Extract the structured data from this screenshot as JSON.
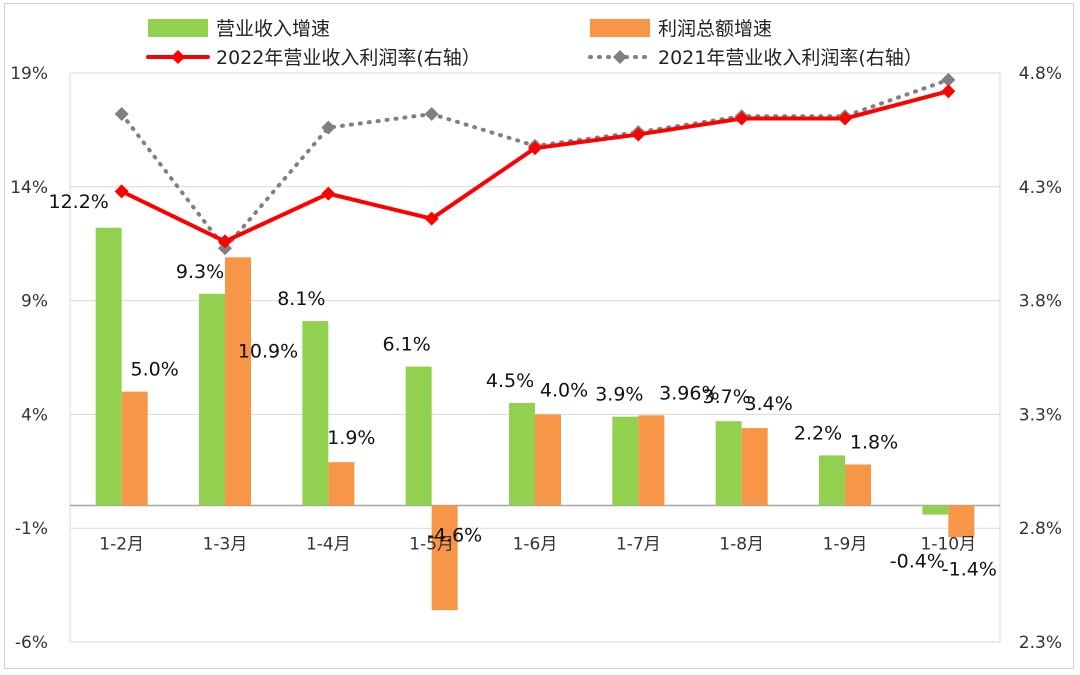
{
  "chart_data": {
    "type": "bar",
    "categories": [
      "1-2月",
      "1-3月",
      "1-4月",
      "1-5月",
      "1-6月",
      "1-7月",
      "1-8月",
      "1-9月",
      "1-10月"
    ],
    "series": [
      {
        "name": "营业收入增速",
        "type": "bar",
        "axis": "left",
        "color": "#92d050",
        "values": [
          12.2,
          9.3,
          8.1,
          6.1,
          4.5,
          3.9,
          3.7,
          2.2,
          -0.4
        ],
        "labels": [
          "12.2%",
          "9.3%",
          "8.1%",
          "6.1%",
          "4.5%",
          "3.9%",
          "3.7%",
          "2.2%",
          "-0.4%"
        ]
      },
      {
        "name": "利润总额增速",
        "type": "bar",
        "axis": "left",
        "color": "#f79646",
        "values": [
          5.0,
          10.9,
          1.9,
          -4.6,
          4.0,
          3.96,
          3.4,
          1.8,
          -1.4
        ],
        "labels": [
          "5.0%",
          "10.9%",
          "1.9%",
          "-4.6%",
          "4.0%",
          "3.96%",
          "3.4%",
          "1.8%",
          "-1.4%"
        ]
      },
      {
        "name": "2022年营业收入利润率(右轴）",
        "type": "line",
        "axis": "right",
        "color": "#ff0000",
        "values": [
          4.28,
          4.06,
          4.27,
          4.16,
          4.47,
          4.53,
          4.6,
          4.6,
          4.72
        ]
      },
      {
        "name": "2021年营业收入利润率(右轴）",
        "type": "line-dotted",
        "axis": "right",
        "color": "#808080",
        "values": [
          4.62,
          4.03,
          4.56,
          4.62,
          4.48,
          4.54,
          4.61,
          4.61,
          4.77
        ]
      }
    ],
    "left_axis": {
      "min": -6,
      "max": 19,
      "ticks": [
        19,
        14,
        9,
        4,
        -1,
        -6
      ],
      "tick_labels": [
        "19%",
        "14%",
        "9%",
        "4%",
        "-1%",
        "-6%"
      ]
    },
    "right_axis": {
      "min": 2.3,
      "max": 4.8,
      "ticks": [
        4.8,
        4.3,
        3.8,
        3.3,
        2.8,
        2.3
      ],
      "tick_labels": [
        "4.8%",
        "4.3%",
        "3.8%",
        "3.3%",
        "2.8%",
        "2.3%"
      ]
    },
    "title": "",
    "xlabel": "",
    "ylabel": "",
    "grid": true,
    "legend_position": "top",
    "gridline_color": "#d9d9d9",
    "baseline_color": "#a6a6a6"
  }
}
